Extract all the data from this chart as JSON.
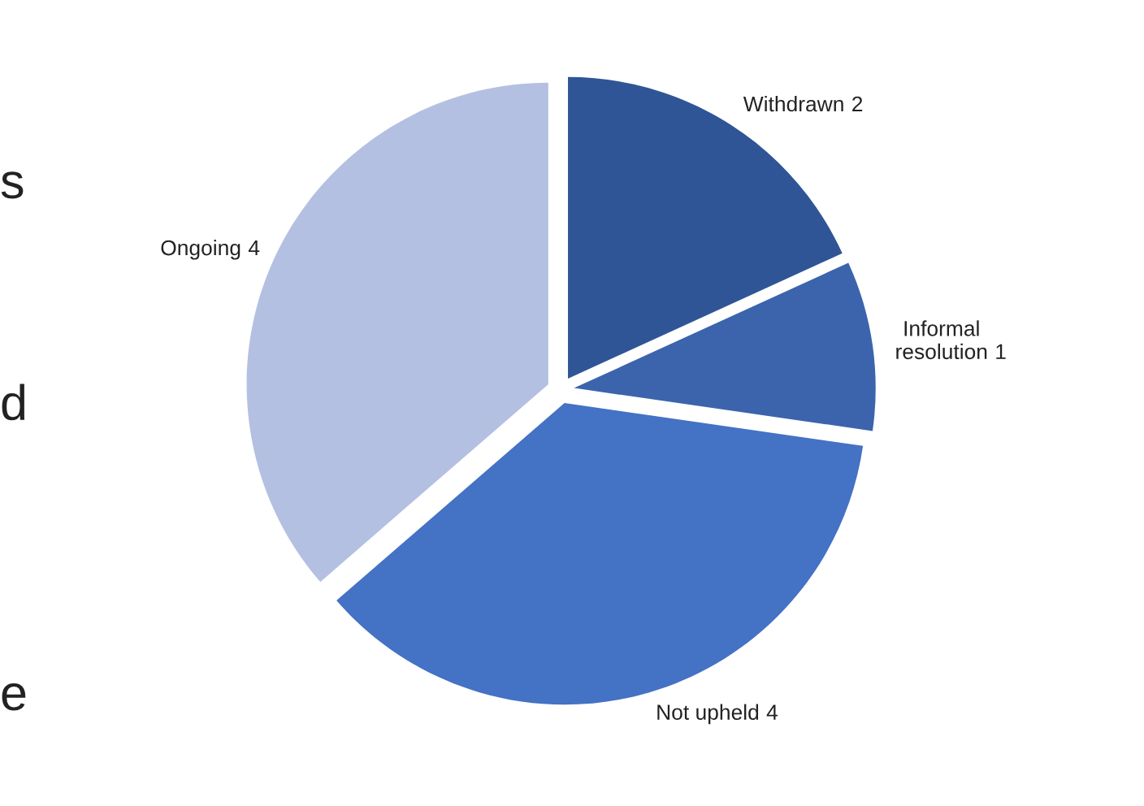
{
  "chart_data": {
    "type": "pie",
    "categories": [
      "Withdrawn",
      "Informal resolution",
      "Not upheld",
      "Ongoing"
    ],
    "values": [
      2,
      1,
      4,
      4
    ],
    "colors": [
      "#2f5597",
      "#3b64ad",
      "#4472c4",
      "#b4c0e2"
    ],
    "data_labels": true,
    "annotations": [
      "s",
      "d",
      "e"
    ]
  }
}
